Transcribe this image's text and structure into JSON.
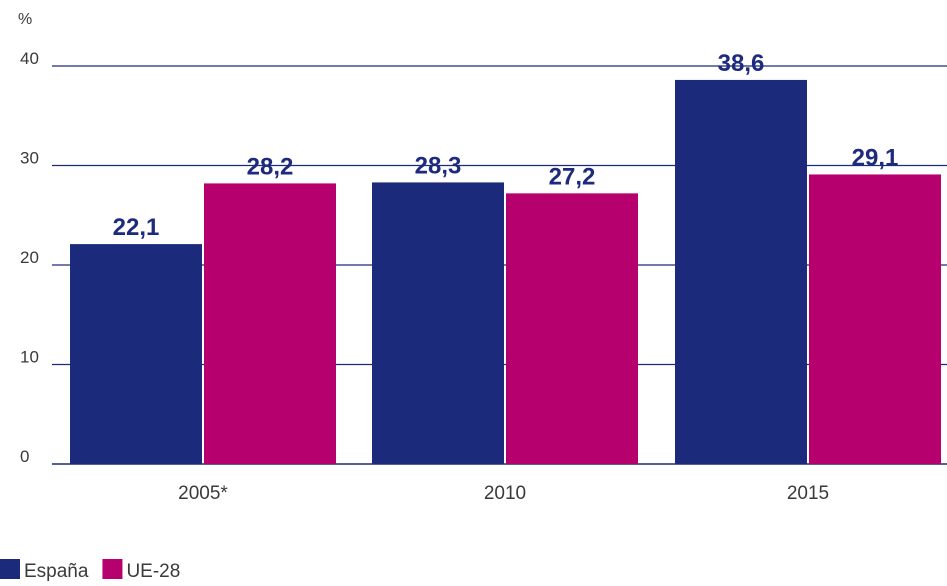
{
  "chart_data": {
    "type": "bar",
    "unit_label": "%",
    "categories": [
      "2005*",
      "2010",
      "2015"
    ],
    "series": [
      {
        "name": "España",
        "color": "#1b2a7b",
        "values": [
          22.1,
          28.3,
          38.6
        ],
        "labels": [
          "22,1",
          "28,3",
          "38,6"
        ]
      },
      {
        "name": "UE-28",
        "color": "#b6006e",
        "values": [
          28.2,
          27.2,
          29.1
        ],
        "labels": [
          "28,2",
          "27,2",
          "29,1"
        ]
      }
    ],
    "ylim": [
      0,
      40
    ],
    "yticks": [
      0,
      10,
      20,
      30,
      40
    ],
    "grid": true,
    "legend_position": "bottom-left",
    "gridline_color": "#1b2a7b",
    "label_color": "#1d2a7e"
  }
}
